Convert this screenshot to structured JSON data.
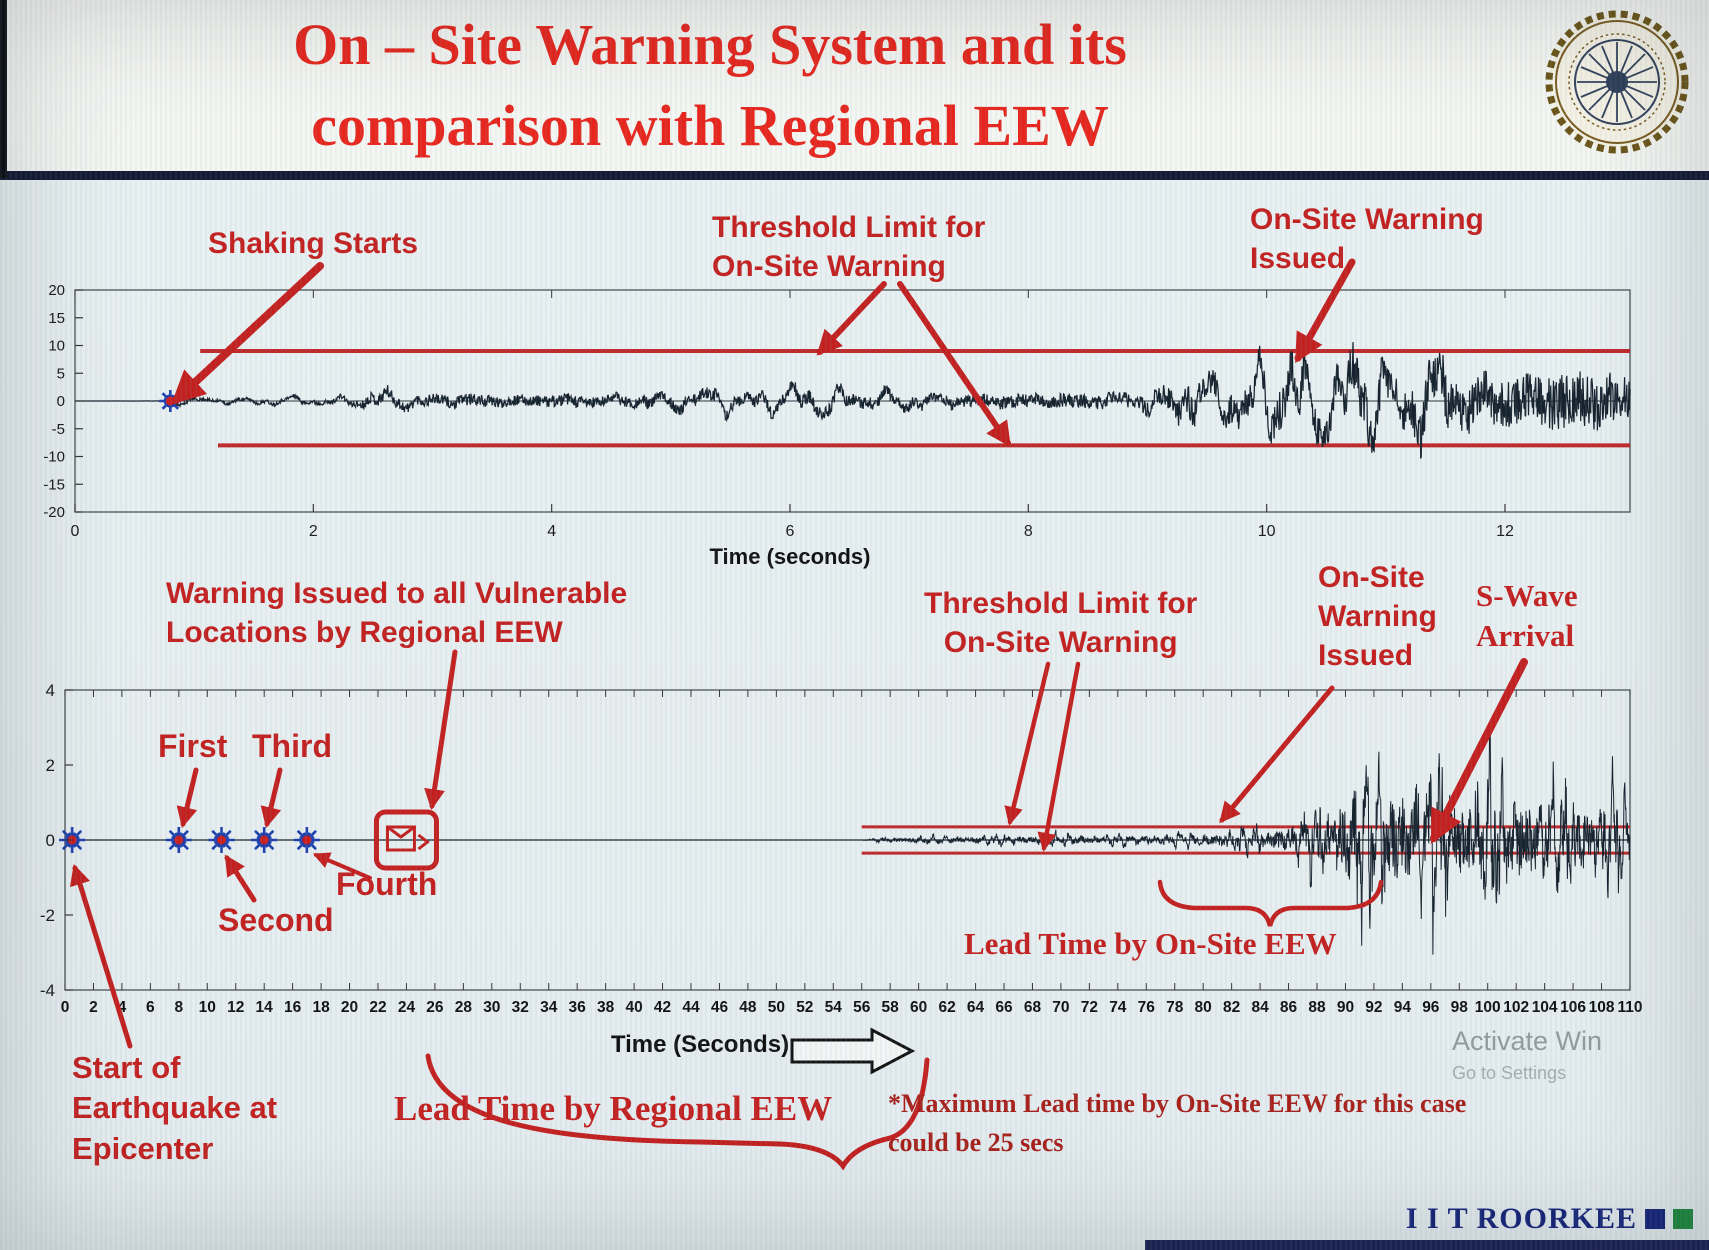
{
  "title": {
    "line1": "On – Site Warning System and its",
    "line2": "comparison with Regional EEW"
  },
  "logo": {
    "name": "iit-roorkee-emblem"
  },
  "colors": {
    "title_red": "#e8261d",
    "annotation_red": "#c3201f",
    "dark_red": "#a8201a",
    "waveform": "#16222e",
    "threshold": "#c0282a",
    "star_blue": "#1d3fae",
    "star_center": "#cc1f1f",
    "brand_navy": "#17257a",
    "brand_green": "#1e8a3e"
  },
  "top_chart_annotations": {
    "shaking_starts": "Shaking Starts",
    "threshold_limit": "Threshold Limit for\nOn-Site Warning",
    "warning_issued": "On-Site Warning\nIssued"
  },
  "bottom_chart_annotations": {
    "regional_warning": "Warning Issued to all Vulnerable\nLocations by Regional EEW",
    "first": "First",
    "second": "Second",
    "third": "Third",
    "fourth": "Fourth",
    "threshold_limit": "Threshold Limit for\nOn-Site Warning",
    "warning_issued": "On-Site\nWarning\nIssued",
    "s_wave": "S-Wave\nArrival",
    "lead_time_onsite": "Lead Time by On-Site EEW",
    "lead_time_regional": "Lead Time by Regional EEW",
    "start_of_eq": "Start of\nEarthquake at\nEpicenter",
    "max_lead_note": "*Maximum Lead time by On-Site EEW for this case\ncould be 25 secs"
  },
  "footer": {
    "brand": "I I T ROORKEE"
  },
  "watermark": {
    "line1": "Activate Win",
    "line2": "Go to Settings"
  },
  "chart_data": [
    {
      "id": "onsite-record",
      "type": "line",
      "title": "",
      "xlabel": "Time (seconds)",
      "ylabel": "",
      "xlim": [
        0,
        12
      ],
      "xticks": [
        0,
        2,
        4,
        6,
        8,
        10,
        12
      ],
      "ylim": [
        -20,
        20
      ],
      "yticks": [
        20,
        15,
        10,
        5,
        0,
        -5,
        -10,
        -15,
        -20
      ],
      "grid": false,
      "legend": false,
      "threshold_upper": 9,
      "threshold_lower": -8,
      "shaking_start_time": 0.8,
      "warning_issued_time": 10,
      "amplitude_envelope": [
        [
          0,
          0
        ],
        [
          0.78,
          0.05
        ],
        [
          0.85,
          1.1
        ],
        [
          1.3,
          0.9
        ],
        [
          1.9,
          1.1
        ],
        [
          2.3,
          1.5
        ],
        [
          2.55,
          3.9
        ],
        [
          2.9,
          3.0
        ],
        [
          3.3,
          3.6
        ],
        [
          3.8,
          2.9
        ],
        [
          4.2,
          3.7
        ],
        [
          4.7,
          3.1
        ],
        [
          5.2,
          3.8
        ],
        [
          5.7,
          3.2
        ],
        [
          6.2,
          4.1
        ],
        [
          6.7,
          3.4
        ],
        [
          7.2,
          3.3
        ],
        [
          7.7,
          3.7
        ],
        [
          8.2,
          4.4
        ],
        [
          8.7,
          4.1
        ],
        [
          9.05,
          5.2
        ],
        [
          9.35,
          9.8
        ],
        [
          9.6,
          7.2
        ],
        [
          9.9,
          11.0
        ],
        [
          10.2,
          14.5
        ],
        [
          10.5,
          9.0
        ],
        [
          10.8,
          15.5
        ],
        [
          11.1,
          11.0
        ],
        [
          11.45,
          16.0
        ],
        [
          11.8,
          12.5
        ],
        [
          12.2,
          15.0
        ],
        [
          12.6,
          16.5
        ],
        [
          13.05,
          13.0
        ]
      ]
    },
    {
      "id": "regional-record",
      "type": "line",
      "title": "",
      "xlabel": "Time (Seconds)",
      "ylabel": "",
      "xlim": [
        0,
        110
      ],
      "xticks": [
        0,
        2,
        4,
        6,
        8,
        10,
        12,
        14,
        16,
        18,
        20,
        22,
        24,
        26,
        28,
        30,
        32,
        34,
        36,
        38,
        40,
        42,
        44,
        46,
        48,
        50,
        52,
        54,
        56,
        58,
        60,
        62,
        64,
        66,
        68,
        70,
        72,
        74,
        76,
        78,
        80,
        82,
        84,
        86,
        88,
        90,
        92,
        94,
        96,
        98,
        100,
        102,
        104,
        106,
        108,
        110
      ],
      "ylim": [
        -4,
        4
      ],
      "yticks": [
        4,
        2,
        0,
        -2,
        -4
      ],
      "grid": false,
      "legend": false,
      "threshold_upper": 0.35,
      "threshold_lower": -0.35,
      "p_wave_detections": [
        {
          "name": "epicenter",
          "t": 0.5
        },
        {
          "name": "first",
          "t": 8
        },
        {
          "name": "second",
          "t": 11
        },
        {
          "name": "third",
          "t": 14
        },
        {
          "name": "fourth",
          "t": 17
        }
      ],
      "regional_warning_time": 24,
      "onsite_warning_time": 81,
      "s_wave_arrival_time": 88,
      "max_onsite_lead_time_secs": 25,
      "amplitude_envelope": [
        [
          0,
          0
        ],
        [
          56,
          0
        ],
        [
          57.5,
          0.1
        ],
        [
          59,
          0.16
        ],
        [
          61,
          0.2
        ],
        [
          63,
          0.18
        ],
        [
          65,
          0.24
        ],
        [
          67,
          0.2
        ],
        [
          69,
          0.26
        ],
        [
          71,
          0.22
        ],
        [
          73,
          0.27
        ],
        [
          75,
          0.24
        ],
        [
          77,
          0.3
        ],
        [
          79,
          0.33
        ],
        [
          81,
          0.42
        ],
        [
          83,
          0.5
        ],
        [
          85,
          0.62
        ],
        [
          86.5,
          0.85
        ],
        [
          88,
          1.5
        ],
        [
          89.5,
          2.4
        ],
        [
          91,
          3.3
        ],
        [
          92.5,
          2.8
        ],
        [
          94,
          3.4
        ],
        [
          95.5,
          2.6
        ],
        [
          97,
          3.2
        ],
        [
          98.5,
          2.5
        ],
        [
          100,
          3.0
        ],
        [
          101.5,
          2.2
        ],
        [
          103,
          2.8
        ],
        [
          104.5,
          2.0
        ],
        [
          106,
          2.5
        ],
        [
          107.5,
          1.8
        ],
        [
          109,
          2.2
        ],
        [
          110,
          1.9
        ]
      ]
    }
  ]
}
